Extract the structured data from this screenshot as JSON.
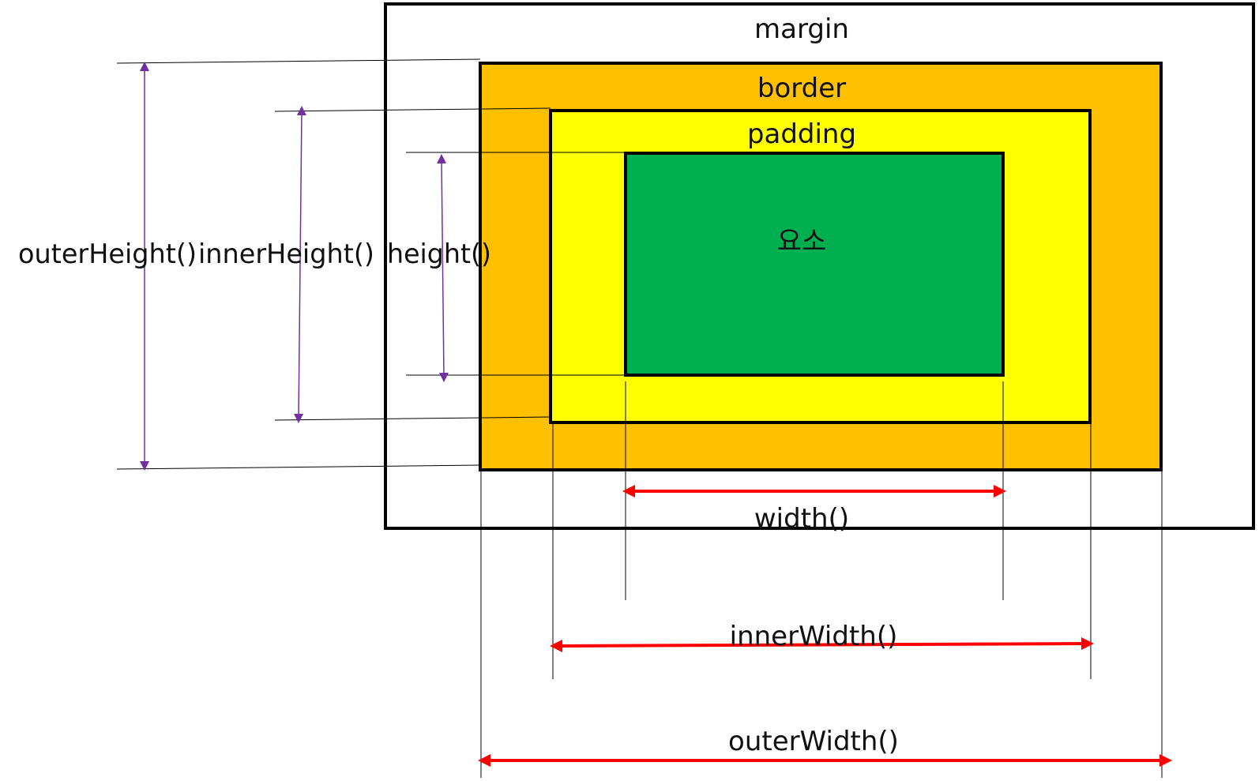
{
  "boxes": {
    "margin": {
      "label": "margin",
      "fill": "#ffffff",
      "stroke": "#000000"
    },
    "border": {
      "label": "border",
      "fill": "#ffc000",
      "stroke": "#000000"
    },
    "padding": {
      "label": "padding",
      "fill": "#ffff00",
      "stroke": "#000000"
    },
    "element": {
      "label": "요소",
      "fill": "#00b050",
      "stroke": "#000000"
    }
  },
  "measures": {
    "outer_height": {
      "label": "outerHeight()"
    },
    "inner_height": {
      "label": "innerHeight()"
    },
    "height": {
      "label": "height()"
    },
    "width": {
      "label": "width()"
    },
    "inner_width": {
      "label": "innerWidth()"
    },
    "outer_width": {
      "label": "outerWidth()"
    }
  },
  "colors": {
    "height_arrow": "#7030a0",
    "width_arrow": "#ff0000",
    "guide_line": "#000000"
  }
}
